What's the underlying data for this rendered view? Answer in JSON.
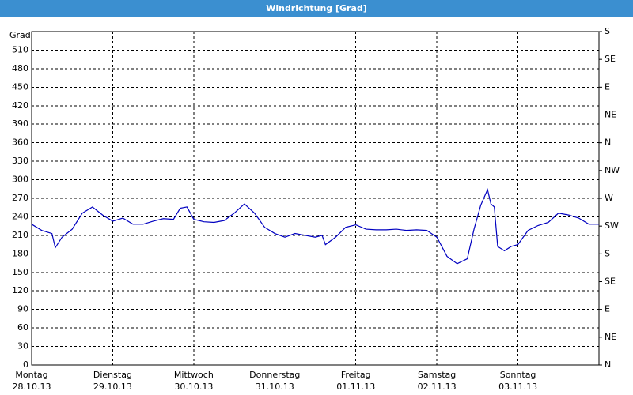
{
  "chart_data": {
    "type": "line",
    "title": "Windrichtung [Grad]",
    "y_label": "Grad",
    "x": [
      0,
      3,
      6,
      7,
      9,
      12,
      15,
      18,
      21,
      24,
      27,
      30,
      33,
      36,
      39,
      42,
      44,
      46,
      48,
      51,
      54,
      57,
      60,
      63,
      66,
      69,
      72,
      75,
      78,
      81,
      84,
      86,
      87,
      90,
      93,
      96,
      99,
      102,
      105,
      108,
      111,
      114,
      117,
      120,
      123,
      126,
      129,
      131,
      133,
      135,
      136,
      137,
      138,
      140,
      142,
      144,
      147,
      150,
      153,
      156,
      159,
      162,
      165,
      168
    ],
    "series": [
      {
        "name": "Windrichtung",
        "color": "#0000c0",
        "values": [
          228,
          218,
          213,
          190,
          207,
          220,
          246,
          256,
          243,
          233,
          238,
          228,
          228,
          233,
          237,
          236,
          254,
          256,
          236,
          232,
          231,
          234,
          246,
          261,
          246,
          223,
          213,
          207,
          213,
          210,
          207,
          210,
          195,
          207,
          223,
          227,
          220,
          219,
          219,
          220,
          218,
          219,
          218,
          207,
          176,
          164,
          172,
          220,
          259,
          284,
          261,
          256,
          192,
          185,
          192,
          195,
          218,
          226,
          231,
          246,
          243,
          238,
          228,
          228
        ]
      }
    ],
    "xlim": [
      0,
      168
    ],
    "xticks": [
      {
        "value": 0,
        "label": "Montag",
        "sublabel": "28.10.13"
      },
      {
        "value": 24,
        "label": "Dienstag",
        "sublabel": "29.10.13"
      },
      {
        "value": 48,
        "label": "Mittwoch",
        "sublabel": "30.10.13"
      },
      {
        "value": 72,
        "label": "Donnerstag",
        "sublabel": "31.10.13"
      },
      {
        "value": 96,
        "label": "Freitag",
        "sublabel": "01.11.13"
      },
      {
        "value": 120,
        "label": "Samstag",
        "sublabel": "02.11.13"
      },
      {
        "value": 144,
        "label": "Sonntag",
        "sublabel": "03.11.13"
      }
    ],
    "ylim": [
      0,
      540
    ],
    "yticks": [
      0,
      30,
      60,
      90,
      120,
      150,
      180,
      210,
      240,
      270,
      300,
      330,
      360,
      390,
      420,
      450,
      480,
      510
    ],
    "y2lim": [
      0,
      540
    ],
    "y2ticks": [
      {
        "value": 0,
        "label": "N"
      },
      {
        "value": 45,
        "label": "NE"
      },
      {
        "value": 90,
        "label": "E"
      },
      {
        "value": 135,
        "label": "SE"
      },
      {
        "value": 180,
        "label": "S"
      },
      {
        "value": 225,
        "label": "SW"
      },
      {
        "value": 270,
        "label": "W"
      },
      {
        "value": 315,
        "label": "NW"
      },
      {
        "value": 360,
        "label": "N"
      },
      {
        "value": 405,
        "label": "NE"
      },
      {
        "value": 450,
        "label": "E"
      },
      {
        "value": 495,
        "label": "SE"
      },
      {
        "value": 540,
        "label": "S"
      }
    ],
    "grid": true
  }
}
